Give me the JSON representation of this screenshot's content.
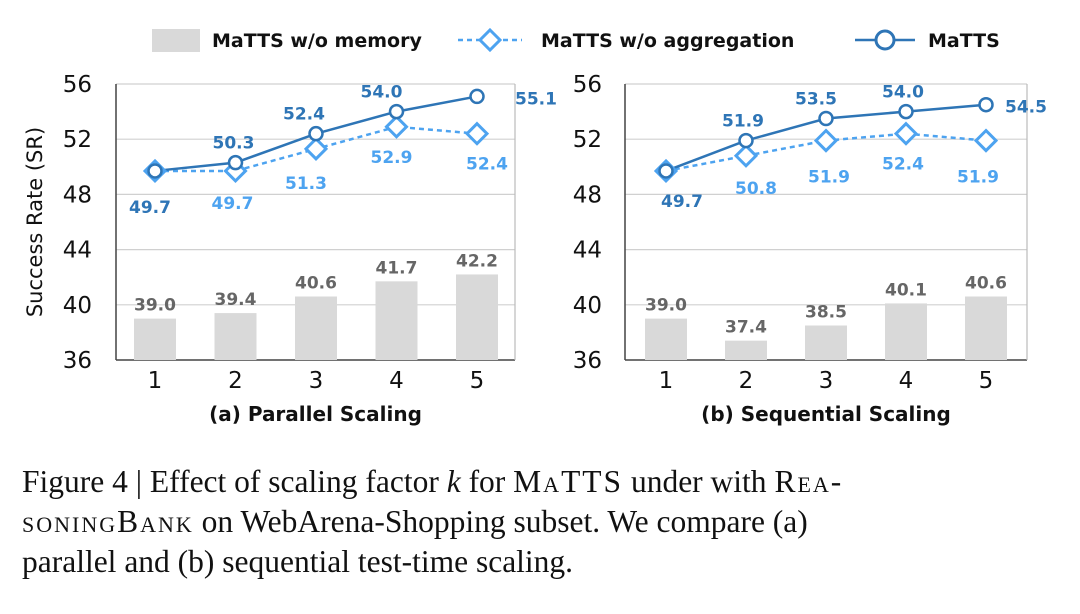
{
  "legend": [
    {
      "name": "MaTTS w/o memory",
      "marker": "bar",
      "color": "#d9d9d9"
    },
    {
      "name": "MaTTS w/o aggregation",
      "marker": "diamond-dashed",
      "color": "#4da3f0"
    },
    {
      "name": "MaTTS",
      "marker": "circle-solid",
      "color": "#2e75b6"
    }
  ],
  "chart_data": [
    {
      "type": "bar+line",
      "title": "(a) Parallel Scaling",
      "ylabel": "Success Rate (SR)",
      "xlabel": "",
      "categories": [
        "1",
        "2",
        "3",
        "4",
        "5"
      ],
      "ylim": [
        36,
        56
      ],
      "yticks": [
        "36",
        "40",
        "44",
        "48",
        "52",
        "56"
      ],
      "grid": true,
      "legend_position": "top",
      "series": [
        {
          "name": "MaTTS w/o memory",
          "type": "bar",
          "values": [
            39.0,
            39.4,
            40.6,
            41.7,
            42.2
          ],
          "labels": [
            "39.0",
            "39.4",
            "40.6",
            "41.7",
            "42.2"
          ]
        },
        {
          "name": "MaTTS w/o aggregation",
          "type": "line",
          "values": [
            49.7,
            49.7,
            51.3,
            52.9,
            52.4
          ],
          "labels": [
            "",
            "49.7",
            "51.3",
            "52.9",
            "52.4"
          ]
        },
        {
          "name": "MaTTS",
          "type": "line",
          "values": [
            49.7,
            50.3,
            52.4,
            54.0,
            55.1
          ],
          "labels": [
            "49.7",
            "50.3",
            "52.4",
            "54.0",
            "55.1"
          ]
        }
      ]
    },
    {
      "type": "bar+line",
      "title": "(b) Sequential Scaling",
      "ylabel": "",
      "xlabel": "",
      "categories": [
        "1",
        "2",
        "3",
        "4",
        "5"
      ],
      "ylim": [
        36,
        56
      ],
      "yticks": [
        "36",
        "40",
        "44",
        "48",
        "52",
        "56"
      ],
      "grid": true,
      "legend_position": "top",
      "series": [
        {
          "name": "MaTTS w/o memory",
          "type": "bar",
          "values": [
            39.0,
            37.4,
            38.5,
            40.1,
            40.6
          ],
          "labels": [
            "39.0",
            "37.4",
            "38.5",
            "40.1",
            "40.6"
          ]
        },
        {
          "name": "MaTTS w/o aggregation",
          "type": "line",
          "values": [
            49.7,
            50.8,
            51.9,
            52.4,
            51.9
          ],
          "labels": [
            "",
            "50.8",
            "51.9",
            "52.4",
            "51.9"
          ]
        },
        {
          "name": "MaTTS",
          "type": "line",
          "values": [
            49.7,
            51.9,
            53.5,
            54.0,
            54.5
          ],
          "labels": [
            "49.7",
            "51.9",
            "53.5",
            "54.0",
            "54.5"
          ]
        }
      ]
    }
  ],
  "caption": {
    "l1a": "Figure 4 | Effect of scaling factor ",
    "l1k": "k",
    "l1b": " for ",
    "l1m": "MaTTS",
    "l1c": " under with ",
    "l1r": "Rea-",
    "l2r": "soningBank",
    "l2a": " on WebArena-Shopping subset. We compare (a)",
    "l3": "parallel and (b) sequential test-time scaling."
  }
}
